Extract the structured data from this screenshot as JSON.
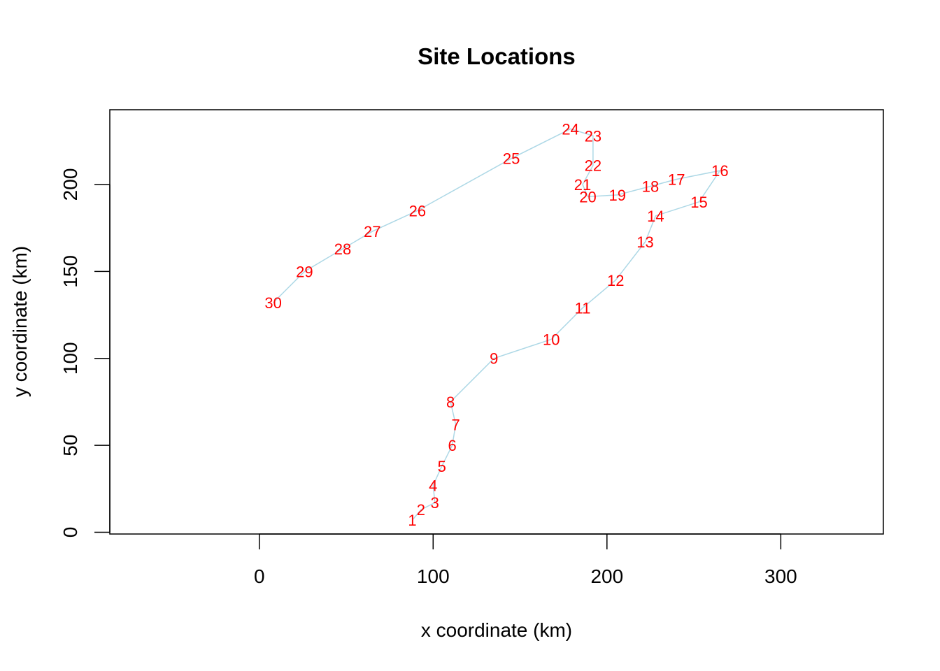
{
  "chart_data": {
    "type": "line",
    "title": "Site Locations",
    "xlabel": "x coordinate (km)",
    "ylabel": "y coordinate (km)",
    "xlim": [
      -86,
      359
    ],
    "ylim": [
      -1,
      243
    ],
    "xticks": [
      0,
      100,
      200,
      300
    ],
    "yticks": [
      0,
      50,
      100,
      150,
      200
    ],
    "line_color": "#add8e6",
    "label_color": "#ff0000",
    "grid": false,
    "points": [
      {
        "label": "1",
        "x": 88,
        "y": 7
      },
      {
        "label": "2",
        "x": 93,
        "y": 13
      },
      {
        "label": "3",
        "x": 101,
        "y": 17
      },
      {
        "label": "4",
        "x": 100,
        "y": 27
      },
      {
        "label": "5",
        "x": 105,
        "y": 38
      },
      {
        "label": "6",
        "x": 111,
        "y": 50
      },
      {
        "label": "7",
        "x": 113,
        "y": 62
      },
      {
        "label": "8",
        "x": 110,
        "y": 75
      },
      {
        "label": "9",
        "x": 135,
        "y": 100
      },
      {
        "label": "10",
        "x": 168,
        "y": 111
      },
      {
        "label": "11",
        "x": 186,
        "y": 129
      },
      {
        "label": "12",
        "x": 205,
        "y": 145
      },
      {
        "label": "13",
        "x": 222,
        "y": 167
      },
      {
        "label": "14",
        "x": 228,
        "y": 182
      },
      {
        "label": "15",
        "x": 253,
        "y": 190
      },
      {
        "label": "16",
        "x": 265,
        "y": 208
      },
      {
        "label": "17",
        "x": 240,
        "y": 203
      },
      {
        "label": "18",
        "x": 225,
        "y": 199
      },
      {
        "label": "19",
        "x": 206,
        "y": 194
      },
      {
        "label": "20",
        "x": 189,
        "y": 193
      },
      {
        "label": "21",
        "x": 186,
        "y": 200
      },
      {
        "label": "22",
        "x": 192,
        "y": 211
      },
      {
        "label": "23",
        "x": 192,
        "y": 228
      },
      {
        "label": "24",
        "x": 179,
        "y": 232
      },
      {
        "label": "25",
        "x": 145,
        "y": 215
      },
      {
        "label": "26",
        "x": 91,
        "y": 185
      },
      {
        "label": "27",
        "x": 65,
        "y": 173
      },
      {
        "label": "28",
        "x": 48,
        "y": 163
      },
      {
        "label": "29",
        "x": 26,
        "y": 150
      },
      {
        "label": "30",
        "x": 8,
        "y": 132
      }
    ]
  }
}
